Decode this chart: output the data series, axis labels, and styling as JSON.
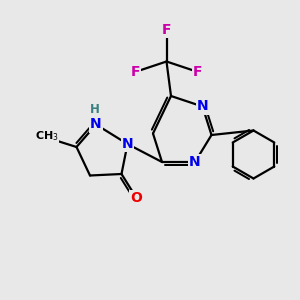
{
  "background_color": "#e8e8e8",
  "bond_color": "#000000",
  "atom_colors": {
    "N": "#0000ee",
    "O": "#ee0000",
    "F": "#cc00aa",
    "H": "#3a8080",
    "C": "#000000"
  },
  "lw": 1.6,
  "fs": 10.0,
  "fs_small": 8.5
}
